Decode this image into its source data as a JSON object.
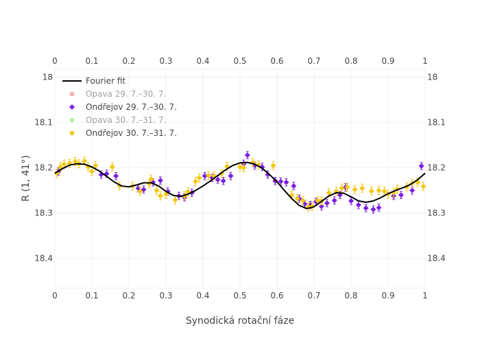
{
  "chart_data": {
    "type": "scatter",
    "xlabel": "Synodická rotační fáze",
    "ylabel": "R (1, 41°)",
    "xlim": [
      0,
      1
    ],
    "ylim": [
      18.4655,
      17.981
    ],
    "y_reversed": true,
    "x_ticks": [
      0,
      0.1,
      0.2,
      0.3,
      0.4,
      0.5,
      0.6,
      0.7,
      0.8,
      0.9,
      1
    ],
    "x_tick_labels": [
      "0",
      "0.1",
      "0.2",
      "0.3",
      "0.4",
      "0.5",
      "0.6",
      "0.7",
      "0.8",
      "0.9",
      "1"
    ],
    "y_ticks": [
      18,
      18.1,
      18.2,
      18.3,
      18.4
    ],
    "y_tick_labels": [
      "18",
      "18.1",
      "18.2",
      "18.3",
      "18.4"
    ],
    "mirror_axes": true,
    "legend_position": "top-left",
    "legend": [
      {
        "name": "Fourier fit",
        "symbol": "line",
        "color": "#000000",
        "hidden": false
      },
      {
        "name": "Opava 29. 7.–30. 7.",
        "symbol": "circle",
        "color": "#ef6b5e",
        "hidden": true
      },
      {
        "name": "Ondřejov 29. 7.–30. 7.",
        "symbol": "diamond",
        "color": "#7b1fe0",
        "hidden": false
      },
      {
        "name": "Opava 30. 7.–31. 7.",
        "symbol": "circle",
        "color": "#7ee860",
        "hidden": true
      },
      {
        "name": "Ondřejov 30. 7.–31. 7.",
        "symbol": "diamond",
        "color": "#f2c811",
        "hidden": false
      }
    ],
    "fit": {
      "name": "Fourier fit",
      "color": "#000000",
      "x": [
        0,
        0.02,
        0.04,
        0.06,
        0.08,
        0.1,
        0.12,
        0.14,
        0.16,
        0.18,
        0.2,
        0.22,
        0.24,
        0.26,
        0.28,
        0.3,
        0.32,
        0.34,
        0.36,
        0.38,
        0.4,
        0.42,
        0.44,
        0.46,
        0.48,
        0.5,
        0.52,
        0.54,
        0.56,
        0.58,
        0.6,
        0.62,
        0.64,
        0.66,
        0.68,
        0.7,
        0.72,
        0.74,
        0.76,
        0.78,
        0.8,
        0.82,
        0.84,
        0.86,
        0.88,
        0.9,
        0.92,
        0.94,
        0.96,
        0.98,
        1
      ],
      "y": [
        18.212,
        18.202,
        18.194,
        18.191,
        18.192,
        18.198,
        18.207,
        18.219,
        18.231,
        18.24,
        18.242,
        18.238,
        18.233,
        18.233,
        18.24,
        18.252,
        18.261,
        18.263,
        18.258,
        18.25,
        18.24,
        18.229,
        18.217,
        18.205,
        18.195,
        18.189,
        18.188,
        18.192,
        18.201,
        18.215,
        18.231,
        18.25,
        18.268,
        18.283,
        18.29,
        18.286,
        18.274,
        18.262,
        18.255,
        18.256,
        18.264,
        18.273,
        18.276,
        18.273,
        18.266,
        18.257,
        18.25,
        18.244,
        18.237,
        18.226,
        18.212
      ]
    },
    "series": [
      {
        "name": "Ondřejov 29. 7.–30. 7.",
        "color": "#7b1fe0",
        "marker": "diamond",
        "error": 0.008,
        "x": [
          0.01,
          0.125,
          0.14,
          0.165,
          0.225,
          0.24,
          0.265,
          0.285,
          0.305,
          0.335,
          0.35,
          0.37,
          0.405,
          0.425,
          0.44,
          0.455,
          0.475,
          0.51,
          0.52,
          0.54,
          0.56,
          0.575,
          0.595,
          0.61,
          0.625,
          0.645,
          0.66,
          0.675,
          0.69,
          0.705,
          0.72,
          0.735,
          0.755,
          0.77,
          0.785,
          0.8,
          0.82,
          0.84,
          0.86,
          0.875,
          0.915,
          0.935,
          0.965,
          0.99
        ],
        "y": [
          18.208,
          18.215,
          18.213,
          18.218,
          18.245,
          18.248,
          18.232,
          18.228,
          18.252,
          18.262,
          18.265,
          18.255,
          18.218,
          18.222,
          18.226,
          18.229,
          18.218,
          18.191,
          18.172,
          18.195,
          18.198,
          18.215,
          18.229,
          18.23,
          18.232,
          18.24,
          18.268,
          18.28,
          18.282,
          18.275,
          18.285,
          18.278,
          18.272,
          18.26,
          18.243,
          18.273,
          18.282,
          18.289,
          18.292,
          18.288,
          18.262,
          18.26,
          18.25,
          18.196
        ]
      },
      {
        "name": "Ondřejov 30. 7.–31. 7.",
        "color": "#f2c811",
        "marker": "diamond",
        "error": 0.009,
        "x": [
          0.005,
          0.015,
          0.025,
          0.04,
          0.055,
          0.065,
          0.08,
          0.09,
          0.1,
          0.11,
          0.155,
          0.175,
          0.21,
          0.23,
          0.255,
          0.26,
          0.275,
          0.285,
          0.3,
          0.325,
          0.35,
          0.36,
          0.38,
          0.39,
          0.415,
          0.43,
          0.45,
          0.465,
          0.5,
          0.51,
          0.535,
          0.55,
          0.59,
          0.64,
          0.655,
          0.67,
          0.685,
          0.695,
          0.71,
          0.72,
          0.74,
          0.76,
          0.775,
          0.79,
          0.81,
          0.83,
          0.855,
          0.875,
          0.89,
          0.9,
          0.915,
          0.925,
          0.95,
          0.965,
          0.98,
          0.995
        ],
        "y": [
          18.212,
          18.198,
          18.192,
          18.19,
          18.186,
          18.191,
          18.185,
          18.198,
          18.208,
          18.195,
          18.198,
          18.24,
          18.24,
          18.252,
          18.235,
          18.225,
          18.25,
          18.262,
          18.258,
          18.271,
          18.262,
          18.253,
          18.23,
          18.222,
          18.217,
          18.218,
          18.213,
          18.197,
          18.198,
          18.2,
          18.188,
          18.193,
          18.195,
          18.26,
          18.268,
          18.272,
          18.286,
          18.285,
          18.272,
          18.273,
          18.255,
          18.252,
          18.245,
          18.243,
          18.248,
          18.245,
          18.251,
          18.25,
          18.252,
          18.258,
          18.255,
          18.247,
          18.242,
          18.234,
          18.232,
          18.241
        ]
      }
    ]
  }
}
